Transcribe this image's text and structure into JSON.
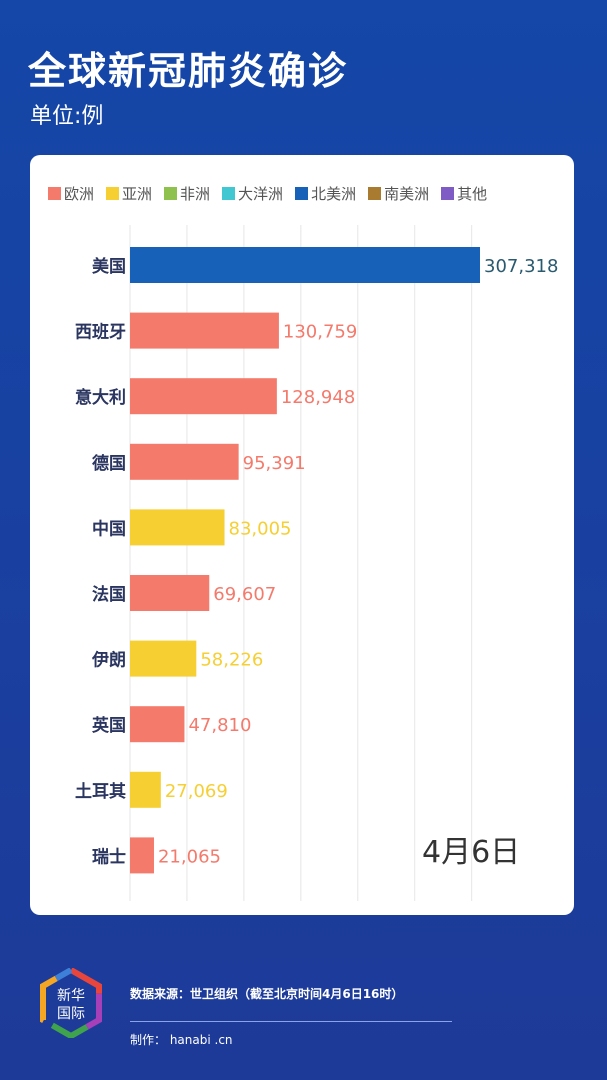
{
  "title": "全球新冠肺炎确诊",
  "unit": "单位:例",
  "date": "4月6日",
  "footer": {
    "source": "数据来源：世卫组织（截至北京时间4月6日16时）",
    "made_by": "制作： hanabi .cn",
    "logo_text": "新华国际"
  },
  "colors": {
    "欧洲": "#f47a6c",
    "亚洲": "#f6cf33",
    "非洲": "#8fc14f",
    "大洋洲": "#40c7d2",
    "北美洲": "#1761b8",
    "南美洲": "#a87b30",
    "其他": "#7f5bc6"
  },
  "chart_data": {
    "type": "bar",
    "orientation": "horizontal",
    "legend": [
      "欧洲",
      "亚洲",
      "非洲",
      "大洋洲",
      "北美洲",
      "南美洲",
      "其他"
    ],
    "legend_placement": "top",
    "grid": true,
    "xlim": [
      0,
      300000
    ],
    "categories": [
      "美国",
      "西班牙",
      "意大利",
      "德国",
      "中国",
      "法国",
      "伊朗",
      "英国",
      "土耳其",
      "瑞士"
    ],
    "values": [
      307318,
      130759,
      128948,
      95391,
      83005,
      69607,
      58226,
      47810,
      27069,
      21065
    ],
    "labels": [
      "307,318",
      "130,759",
      "128,948",
      "95,391",
      "83,005",
      "69,607",
      "58,226",
      "47,810",
      "27,069",
      "21,065"
    ],
    "groups": [
      "北美洲",
      "欧洲",
      "欧洲",
      "欧洲",
      "亚洲",
      "欧洲",
      "亚洲",
      "欧洲",
      "亚洲",
      "欧洲"
    ]
  }
}
